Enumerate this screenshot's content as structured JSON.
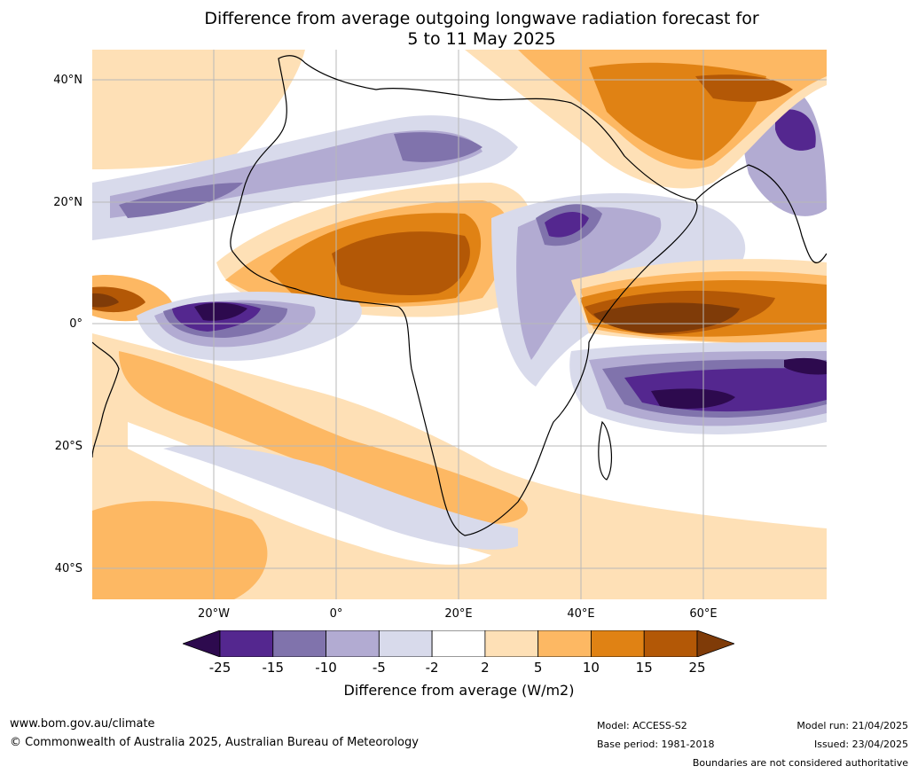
{
  "title_line1": "Difference from average outgoing longwave radiation forecast for",
  "title_line2": "5 to 11 May 2025",
  "lat_labels": [
    "40°N",
    "20°N",
    "0°",
    "20°S",
    "40°S"
  ],
  "lon_labels": [
    "20°W",
    "0°",
    "20°E",
    "40°E",
    "60°E"
  ],
  "colorbar": {
    "ticks": [
      "-25",
      "-15",
      "-10",
      "-5",
      "-2",
      "2",
      "5",
      "10",
      "15",
      "25"
    ],
    "colors": [
      "#2d0a4e",
      "#54278f",
      "#8073ac",
      "#b2abd2",
      "#d8daeb",
      "#ffffff",
      "#fee0b6",
      "#fdb863",
      "#e08214",
      "#b35806",
      "#7f3b08"
    ],
    "label": "Difference from average (W/m2)"
  },
  "footer": {
    "website": "www.bom.gov.au/climate",
    "copyright": "© Commonwealth of Australia 2025, Australian Bureau of Meteorology",
    "model": "Model: ACCESS-S2",
    "base_period": "Base period: 1981-2018",
    "model_run": "Model run: 21/04/2025",
    "issued": "Issued: 23/04/2025",
    "disclaimer": "Boundaries are not considered authoritative"
  }
}
